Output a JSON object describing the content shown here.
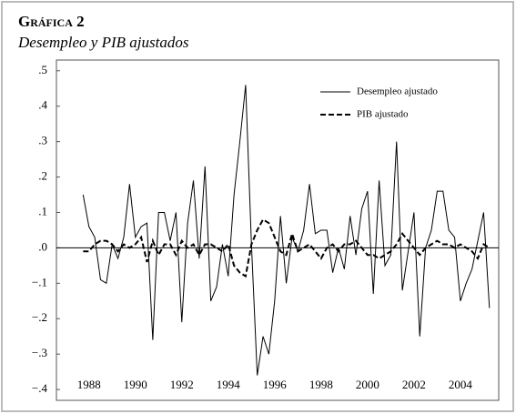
{
  "chart_data": {
    "type": "line",
    "title": "Gráfica 2",
    "subtitle": "Desempleo y PIB ajustados",
    "x": [
      1987.75,
      1988,
      1988.25,
      1988.5,
      1988.75,
      1989,
      1989.25,
      1989.5,
      1989.75,
      1990,
      1990.25,
      1990.5,
      1990.75,
      1991,
      1991.25,
      1991.5,
      1991.75,
      1992,
      1992.25,
      1992.5,
      1992.75,
      1993,
      1993.25,
      1993.5,
      1993.75,
      1994,
      1994.25,
      1994.5,
      1994.75,
      1995,
      1995.25,
      1995.5,
      1995.75,
      1996,
      1996.25,
      1996.5,
      1996.75,
      1997,
      1997.25,
      1997.5,
      1997.75,
      1998,
      1998.25,
      1998.5,
      1998.75,
      1999,
      1999.25,
      1999.5,
      1999.75,
      2000,
      2000.25,
      2000.5,
      2000.75,
      2001,
      2001.25,
      2001.5,
      2001.75,
      2002,
      2002.25,
      2002.5,
      2002.75,
      2003,
      2003.25,
      2003.5,
      2003.75,
      2004,
      2004.25,
      2004.5,
      2004.75,
      2005,
      2005.25
    ],
    "series": [
      {
        "name": "Desempleo ajustado",
        "color": "#000000",
        "dash": false,
        "values": [
          0.15,
          0.06,
          0.03,
          -0.09,
          -0.1,
          0.01,
          -0.03,
          0.03,
          0.18,
          0.03,
          0.06,
          0.07,
          -0.26,
          0.1,
          0.1,
          0.02,
          0.1,
          -0.21,
          0.07,
          0.19,
          -0.03,
          0.23,
          -0.15,
          -0.11,
          0.01,
          -0.08,
          0.15,
          0.3,
          0.46,
          0.01,
          -0.36,
          -0.25,
          -0.3,
          -0.15,
          0.09,
          -0.1,
          0.03,
          -0.01,
          0.05,
          0.18,
          0.04,
          0.05,
          0.05,
          -0.07,
          0.0,
          -0.06,
          0.09,
          -0.02,
          0.11,
          0.16,
          -0.13,
          0.19,
          -0.05,
          -0.02,
          0.3,
          -0.12,
          -0.01,
          0.1,
          -0.25,
          0.0,
          0.05,
          0.16,
          0.16,
          0.05,
          0.03,
          -0.15,
          -0.1,
          -0.06,
          0.02,
          0.1,
          -0.17
        ]
      },
      {
        "name": "PIB ajustado",
        "color": "#000000",
        "dash": true,
        "values": [
          -0.01,
          -0.01,
          0.01,
          0.02,
          0.02,
          0.01,
          -0.01,
          0.01,
          0.0,
          0.01,
          0.03,
          -0.04,
          0.02,
          -0.02,
          0.01,
          0.01,
          -0.02,
          0.02,
          0.0,
          0.01,
          -0.02,
          0.01,
          0.01,
          0.0,
          -0.01,
          0.01,
          -0.05,
          -0.07,
          -0.08,
          0.01,
          0.05,
          0.08,
          0.07,
          0.03,
          -0.01,
          -0.02,
          0.04,
          -0.01,
          0.0,
          0.01,
          -0.01,
          -0.03,
          0.0,
          0.01,
          -0.01,
          0.01,
          0.01,
          0.02,
          0.0,
          -0.02,
          -0.02,
          -0.03,
          -0.02,
          -0.01,
          0.01,
          0.04,
          0.02,
          0.0,
          -0.02,
          0.0,
          0.01,
          0.02,
          0.01,
          0.01,
          0.0,
          0.01,
          0.0,
          -0.01,
          -0.03,
          0.01,
          0.0
        ]
      }
    ],
    "xlim": [
      1986.6,
      2005.65
    ],
    "xticks": [
      1988,
      1990,
      1992,
      1994,
      1996,
      1998,
      2000,
      2002,
      2004
    ],
    "ylim": [
      -0.41,
      0.52
    ],
    "yticks": [
      {
        "value": 0.5,
        "label": ".5"
      },
      {
        "value": 0.4,
        "label": ".4"
      },
      {
        "value": 0.3,
        "label": ".3"
      },
      {
        "value": 0.2,
        "label": ".2"
      },
      {
        "value": 0.1,
        "label": ".1"
      },
      {
        "value": 0,
        "label": ".0"
      },
      {
        "value": -0.1,
        "label": "−.1"
      },
      {
        "value": -0.2,
        "label": "−.2"
      },
      {
        "value": -0.3,
        "label": "−.3"
      },
      {
        "value": -0.4,
        "label": "−.4"
      }
    ],
    "zero_line": true,
    "legend": "upper right"
  }
}
